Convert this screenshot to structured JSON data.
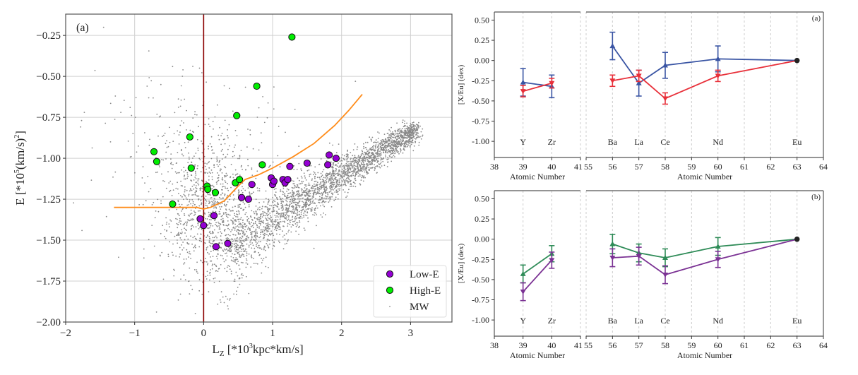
{
  "chart_data": [
    {
      "type": "scatter",
      "panel_label": "(a)",
      "title": "",
      "xlabel": "L_Z [*10^3 kpc*km/s]",
      "ylabel": "E [*10^5 (km/s)^2]",
      "xlim": [
        -2,
        3.6
      ],
      "ylim": [
        -2.0,
        -0.12
      ],
      "xticks": [
        -2,
        -1,
        0,
        1,
        2,
        3
      ],
      "yticks": [
        -2.0,
        -1.75,
        -1.5,
        -1.25,
        -1.0,
        -0.75,
        -0.5,
        -0.25
      ],
      "xtick_labels": [
        "−2",
        "−1",
        "0",
        "1",
        "2",
        "3"
      ],
      "ytick_labels": [
        "−2.00",
        "−1.75",
        "−1.50",
        "−1.25",
        "−1.00",
        "−0.75",
        "−0.50",
        "−0.25"
      ],
      "grid": true,
      "legend_position": "bottom-right",
      "vertical_line": {
        "x": 0,
        "color": "#8b0000"
      },
      "boundary_curve": {
        "color": "#ff8c1a",
        "x": [
          -1.3,
          -0.6,
          -0.1,
          0.0,
          0.1,
          0.3,
          0.5,
          0.6,
          0.8,
          1.0,
          1.3,
          1.6,
          1.9,
          2.1,
          2.3
        ],
        "y": [
          -1.3,
          -1.3,
          -1.3,
          -1.31,
          -1.3,
          -1.26,
          -1.17,
          -1.13,
          -1.1,
          -1.06,
          -0.99,
          -0.91,
          -0.8,
          -0.71,
          -0.61
        ]
      },
      "series": [
        {
          "name": "Low-E",
          "color": "#9400d3",
          "points": [
            [
              -0.05,
              -1.37
            ],
            [
              0.0,
              -1.41
            ],
            [
              0.15,
              -1.35
            ],
            [
              0.18,
              -1.54
            ],
            [
              0.35,
              -1.52
            ],
            [
              0.55,
              -1.24
            ],
            [
              0.65,
              -1.25
            ],
            [
              0.7,
              -1.16
            ],
            [
              0.98,
              -1.12
            ],
            [
              1.0,
              -1.16
            ],
            [
              1.02,
              -1.14
            ],
            [
              1.15,
              -1.13
            ],
            [
              1.18,
              -1.15
            ],
            [
              1.22,
              -1.13
            ],
            [
              1.25,
              -1.05
            ],
            [
              1.5,
              -1.03
            ],
            [
              1.8,
              -1.04
            ],
            [
              1.82,
              -0.98
            ],
            [
              1.92,
              -1.0
            ]
          ]
        },
        {
          "name": "High-E",
          "color": "#00ee00",
          "points": [
            [
              -0.72,
              -0.96
            ],
            [
              -0.68,
              -1.02
            ],
            [
              -0.2,
              -0.87
            ],
            [
              -0.18,
              -1.06
            ],
            [
              -0.45,
              -1.28
            ],
            [
              0.05,
              -1.17
            ],
            [
              0.06,
              -1.19
            ],
            [
              0.17,
              -1.21
            ],
            [
              0.46,
              -1.15
            ],
            [
              0.52,
              -1.13
            ],
            [
              0.85,
              -1.04
            ],
            [
              0.48,
              -0.74
            ],
            [
              0.77,
              -0.56
            ],
            [
              1.28,
              -0.26
            ]
          ]
        },
        {
          "name": "MW",
          "color": "#888888",
          "description": "thousands of small grey points; dense diagonal band from (0.3,-1.55) to (3.1,-0.8) plus diffuse cloud around L_Z 0"
        }
      ]
    },
    {
      "type": "line",
      "panel_label": "(a)",
      "xlabel": "Atomic Number",
      "ylabel": "[X/Eu] (dex)",
      "ylim": [
        -1.2,
        0.6
      ],
      "yticks": [
        0.5,
        0.25,
        0.0,
        -0.25,
        -0.5,
        -0.75,
        -1.0
      ],
      "ytick_labels": [
        "0.50",
        "0.25",
        "0.00",
        "-0.25",
        "-0.50",
        "-0.75",
        "-1.00"
      ],
      "xlim_left": [
        38,
        41
      ],
      "xlim_right": [
        55,
        64
      ],
      "xticks_left": [
        38,
        39,
        40,
        41
      ],
      "xticks_right": [
        55,
        56,
        57,
        58,
        59,
        60,
        61,
        62,
        63,
        64
      ],
      "element_labels": [
        {
          "z": 39,
          "label": "Y"
        },
        {
          "z": 40,
          "label": "Zr"
        },
        {
          "z": 56,
          "label": "Ba"
        },
        {
          "z": 57,
          "label": "La"
        },
        {
          "z": 58,
          "label": "Ce"
        },
        {
          "z": 60,
          "label": "Nd"
        },
        {
          "z": 63,
          "label": "Eu"
        }
      ],
      "x": [
        39,
        40,
        56,
        57,
        58,
        60,
        63
      ],
      "series": [
        {
          "name": "blue",
          "color": "#3a55a4",
          "marker": "triangle-up",
          "values": [
            -0.27,
            -0.32,
            0.18,
            -0.28,
            -0.06,
            0.02,
            0.0
          ],
          "errors": [
            0.17,
            0.14,
            0.17,
            0.16,
            0.16,
            0.16,
            0.0
          ]
        },
        {
          "name": "red",
          "color": "#e8303a",
          "marker": "triangle-down",
          "values": [
            -0.38,
            -0.28,
            -0.25,
            -0.19,
            -0.47,
            -0.19,
            0.0
          ],
          "errors": [
            0.07,
            0.06,
            0.07,
            0.07,
            0.07,
            0.07,
            0.0
          ]
        }
      ],
      "eu_anchor": {
        "z": 63,
        "value": 0.0,
        "color": "#222222"
      }
    },
    {
      "type": "line",
      "panel_label": "(b)",
      "xlabel": "Atomic Number",
      "ylabel": "[X/Eu] (dex)",
      "ylim": [
        -1.2,
        0.6
      ],
      "yticks": [
        0.5,
        0.25,
        0.0,
        -0.25,
        -0.5,
        -0.75,
        -1.0
      ],
      "ytick_labels": [
        "0.50",
        "0.25",
        "0.00",
        "-0.25",
        "-0.50",
        "-0.75",
        "-1.00"
      ],
      "xlim_left": [
        38,
        41
      ],
      "xlim_right": [
        55,
        64
      ],
      "xticks_left": [
        38,
        39,
        40,
        41
      ],
      "xticks_right": [
        55,
        56,
        57,
        58,
        59,
        60,
        61,
        62,
        63,
        64
      ],
      "element_labels": [
        {
          "z": 39,
          "label": "Y"
        },
        {
          "z": 40,
          "label": "Zr"
        },
        {
          "z": 56,
          "label": "Ba"
        },
        {
          "z": 57,
          "label": "La"
        },
        {
          "z": 58,
          "label": "Ce"
        },
        {
          "z": 60,
          "label": "Nd"
        },
        {
          "z": 63,
          "label": "Eu"
        }
      ],
      "x": [
        39,
        40,
        56,
        57,
        58,
        60,
        63
      ],
      "series": [
        {
          "name": "green",
          "color": "#2e8b57",
          "marker": "triangle-up",
          "values": [
            -0.43,
            -0.18,
            -0.06,
            -0.17,
            -0.23,
            -0.09,
            0.0
          ],
          "errors": [
            0.11,
            0.1,
            0.12,
            0.11,
            0.11,
            0.11,
            0.0
          ]
        },
        {
          "name": "purple",
          "color": "#7b3294",
          "marker": "triangle-down",
          "values": [
            -0.65,
            -0.26,
            -0.23,
            -0.21,
            -0.44,
            -0.25,
            0.0
          ],
          "errors": [
            0.11,
            0.1,
            0.11,
            0.11,
            0.11,
            0.1,
            0.0
          ]
        }
      ],
      "eu_anchor": {
        "z": 63,
        "value": 0.0,
        "color": "#222222"
      }
    }
  ]
}
